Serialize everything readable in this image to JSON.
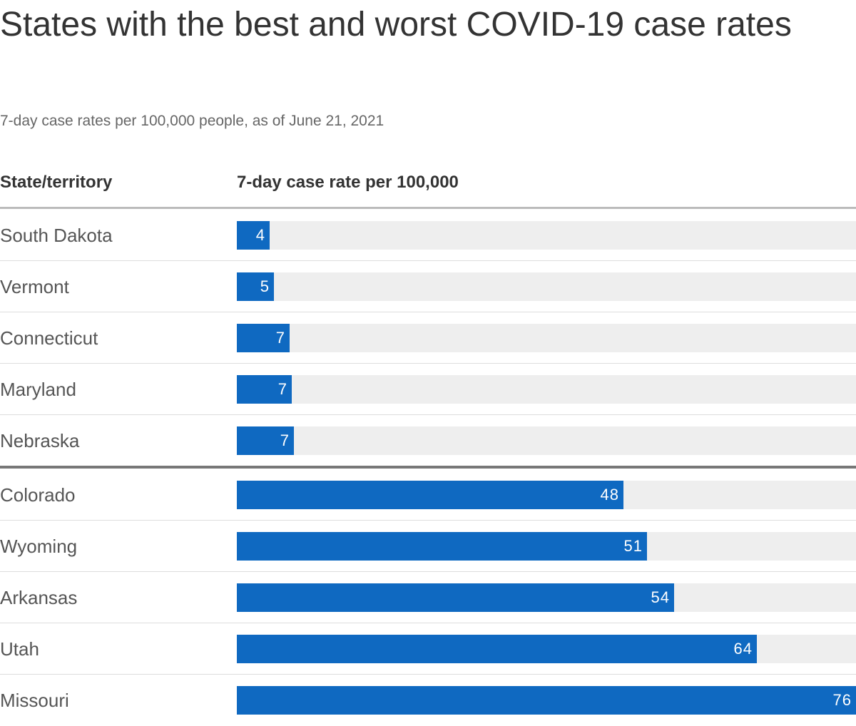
{
  "chart_data": {
    "type": "bar",
    "orientation": "horizontal",
    "title": "States with the best and worst COVID-19 case rates",
    "subtitle": "7-day case rates per 100,000 people, as of June 21, 2021",
    "column_headers": {
      "category": "State/territory",
      "value": "7-day case rate per 100,000"
    },
    "categories": [
      "South Dakota",
      "Vermont",
      "Connecticut",
      "Maryland",
      "Nebraska",
      "Colorado",
      "Wyoming",
      "Arkansas",
      "Utah",
      "Missouri"
    ],
    "values": [
      4.0,
      4.6,
      6.5,
      6.8,
      7.0,
      47.6,
      50.5,
      53.8,
      64.0,
      76.2
    ],
    "value_labels": [
      "4",
      "5",
      "7",
      "7",
      "7",
      "48",
      "51",
      "54",
      "64",
      "76"
    ],
    "groups": [
      {
        "name": "best",
        "count": 5
      },
      {
        "name": "worst",
        "count": 5
      }
    ],
    "xlim": [
      0,
      76.2
    ],
    "grid": false,
    "legend": "none",
    "colors": {
      "bar": "#0f69c1",
      "track": "#eeeeee",
      "value_text": "#ffffff"
    }
  }
}
